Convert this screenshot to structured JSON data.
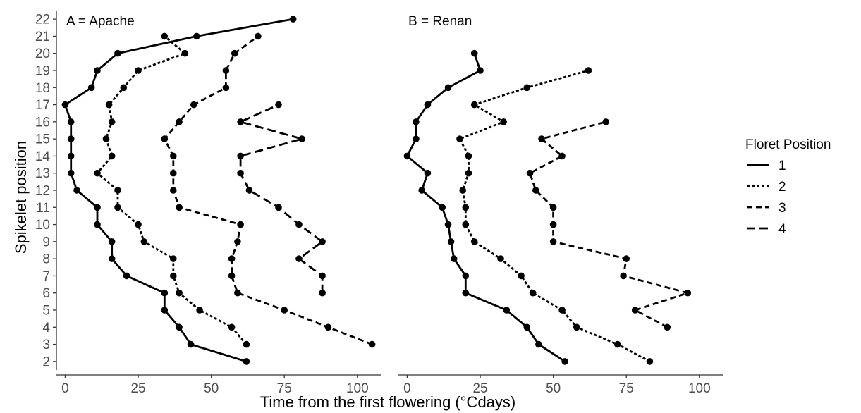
{
  "chart_data": {
    "type": "line",
    "xlabel": "Time from the first flowering (°Cdays)",
    "ylabel": "Spikelet position",
    "legend": {
      "title": "Floret Position",
      "placement": "right",
      "entries": [
        {
          "label": "1",
          "dash": "solid"
        },
        {
          "label": "2",
          "dash": "dotted"
        },
        {
          "label": "3",
          "dash": "dashed"
        },
        {
          "label": "4",
          "dash": "longdash"
        }
      ]
    },
    "y_ticks": [
      "2",
      "3",
      "4",
      "5",
      "6",
      "7",
      "8",
      "9",
      "10",
      "11",
      "12",
      "13",
      "14",
      "15",
      "16",
      "17",
      "18",
      "19",
      "20",
      "21",
      "22"
    ],
    "grid": false,
    "panels": [
      {
        "label": "A = Apache",
        "xlim": [
          -3,
          108
        ],
        "x_ticks": [
          "0",
          "25",
          "50",
          "75",
          "100"
        ],
        "series": [
          {
            "name": "1",
            "points": [
              [
                62,
                2
              ],
              [
                43,
                3
              ],
              [
                39,
                4
              ],
              [
                34,
                5
              ],
              [
                34,
                6
              ],
              [
                21,
                7
              ],
              [
                16,
                8
              ],
              [
                16,
                9
              ],
              [
                11,
                10
              ],
              [
                11,
                11
              ],
              [
                4,
                12
              ],
              [
                2,
                13
              ],
              [
                2,
                14
              ],
              [
                2,
                15
              ],
              [
                2,
                16
              ],
              [
                0,
                17
              ],
              [
                9,
                18
              ],
              [
                11,
                19
              ],
              [
                18,
                20
              ],
              [
                45,
                21
              ],
              [
                78,
                22
              ]
            ]
          },
          {
            "name": "2",
            "points": [
              [
                62,
                3
              ],
              [
                57,
                4
              ],
              [
                46,
                5
              ],
              [
                39,
                6
              ],
              [
                37,
                7
              ],
              [
                37,
                8
              ],
              [
                27,
                9
              ],
              [
                25,
                10
              ],
              [
                18,
                11
              ],
              [
                18,
                12
              ],
              [
                11,
                13
              ],
              [
                16,
                14
              ],
              [
                14,
                15
              ],
              [
                16,
                16
              ],
              [
                15,
                17
              ],
              [
                20,
                18
              ],
              [
                25,
                19
              ],
              [
                41,
                20
              ],
              [
                34,
                21
              ]
            ]
          },
          {
            "name": "3",
            "points": [
              [
                105,
                3
              ],
              [
                90,
                4
              ],
              [
                75,
                5
              ],
              [
                59,
                6
              ],
              [
                57,
                7
              ],
              [
                57,
                8
              ],
              [
                59,
                9
              ],
              [
                60,
                10
              ],
              [
                39,
                11
              ],
              [
                37,
                12
              ],
              [
                37,
                13
              ],
              [
                37,
                14
              ],
              [
                34,
                15
              ],
              [
                39,
                16
              ],
              [
                44,
                17
              ],
              [
                55,
                18
              ],
              [
                55,
                19
              ],
              [
                58,
                20
              ],
              [
                66,
                21
              ]
            ]
          },
          {
            "name": "4",
            "points": [
              [
                88,
                6
              ],
              [
                88,
                7
              ],
              [
                80,
                8
              ],
              [
                88,
                9
              ],
              [
                80,
                10
              ],
              [
                73,
                11
              ],
              [
                63,
                12
              ],
              [
                60,
                13
              ],
              [
                60,
                14
              ],
              [
                81,
                15
              ],
              [
                60,
                16
              ],
              [
                73,
                17
              ]
            ]
          }
        ]
      },
      {
        "label": "B = Renan",
        "xlim": [
          -3,
          108
        ],
        "x_ticks": [
          "0",
          "25",
          "50",
          "75",
          "100"
        ],
        "series": [
          {
            "name": "1",
            "points": [
              [
                54,
                2
              ],
              [
                45,
                3
              ],
              [
                41,
                4
              ],
              [
                34,
                5
              ],
              [
                20,
                6
              ],
              [
                20,
                7
              ],
              [
                16,
                8
              ],
              [
                15,
                9
              ],
              [
                14,
                10
              ],
              [
                12,
                11
              ],
              [
                5,
                12
              ],
              [
                7,
                13
              ],
              [
                0,
                14
              ],
              [
                3,
                15
              ],
              [
                3,
                16
              ],
              [
                7,
                17
              ],
              [
                14,
                18
              ],
              [
                25,
                19
              ],
              [
                23,
                20
              ]
            ]
          },
          {
            "name": "2",
            "points": [
              [
                83,
                2
              ],
              [
                72,
                3
              ],
              [
                58,
                4
              ],
              [
                53,
                5
              ],
              [
                43,
                6
              ],
              [
                39,
                7
              ],
              [
                32,
                8
              ],
              [
                23,
                9
              ],
              [
                20,
                10
              ],
              [
                20,
                11
              ],
              [
                19,
                12
              ],
              [
                21,
                13
              ],
              [
                21,
                14
              ],
              [
                18,
                15
              ],
              [
                33,
                16
              ],
              [
                23,
                17
              ],
              [
                41,
                18
              ],
              [
                62,
                19
              ]
            ]
          },
          {
            "name": "3",
            "points": [
              [
                89,
                4
              ],
              [
                78,
                5
              ],
              [
                96,
                6
              ],
              [
                74,
                7
              ],
              [
                75,
                8
              ],
              [
                50,
                9
              ],
              [
                50,
                10
              ],
              [
                50,
                11
              ],
              [
                44,
                12
              ],
              [
                42,
                13
              ],
              [
                53,
                14
              ],
              [
                46,
                15
              ],
              [
                68,
                16
              ]
            ]
          }
        ]
      }
    ]
  }
}
